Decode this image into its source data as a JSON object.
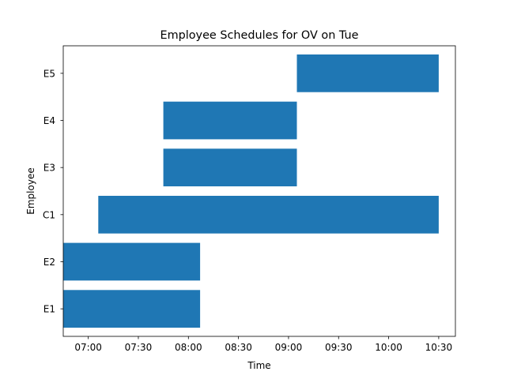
{
  "chart_data": {
    "type": "bar",
    "orientation": "horizontal",
    "title": "Employee Schedules for OV on Tue",
    "xlabel": "Time",
    "ylabel": "Employee",
    "categories": [
      "E1",
      "E2",
      "C1",
      "E3",
      "E4",
      "E5"
    ],
    "x_ticks": [
      "07:00",
      "07:30",
      "08:00",
      "08:30",
      "09:00",
      "09:30",
      "10:00",
      "10:30"
    ],
    "xlim": [
      "06:45",
      "10:40"
    ],
    "grid": false,
    "bar_color": "#1f77b4",
    "bars": [
      {
        "employee": "E1",
        "start": "06:45",
        "end": "08:07"
      },
      {
        "employee": "E2",
        "start": "06:45",
        "end": "08:07"
      },
      {
        "employee": "C1",
        "start": "07:06",
        "end": "10:30"
      },
      {
        "employee": "E3",
        "start": "07:45",
        "end": "09:05"
      },
      {
        "employee": "E4",
        "start": "07:45",
        "end": "09:05"
      },
      {
        "employee": "E5",
        "start": "09:05",
        "end": "10:30"
      }
    ]
  }
}
